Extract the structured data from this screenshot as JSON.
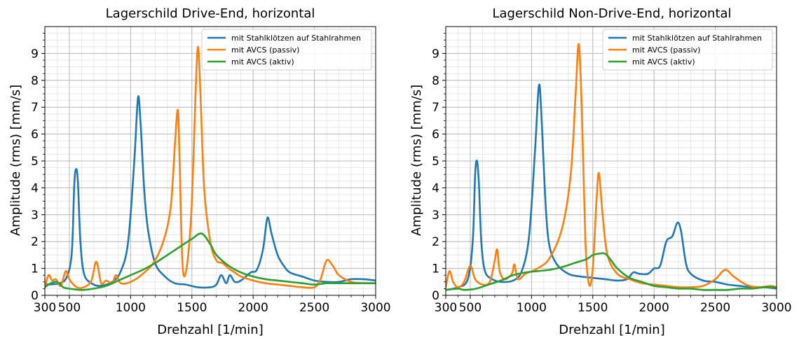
{
  "figure": {
    "panels": [
      {
        "title": "Lagerschild Drive-End, horizontal"
      },
      {
        "title": "Lagerschild Non-Drive-End, horizontal"
      }
    ]
  },
  "colors": {
    "blue": "#1f77b4",
    "orange": "#ff7f0e",
    "green": "#2ca02c"
  },
  "chart_data": [
    {
      "type": "line",
      "title": "Lagerschild Drive-End, horizontal",
      "xlabel": "Drehzahl [1/min]",
      "ylabel": "Amplitude (rms) [mm/s]",
      "xlim": [
        300,
        3000
      ],
      "ylim": [
        0,
        10
      ],
      "xticks": [
        300,
        500,
        1000,
        1500,
        2000,
        2500,
        3000
      ],
      "xtick_labels": [
        "300",
        "500",
        "1000",
        "1500",
        "2000",
        "2500",
        "3000"
      ],
      "yticks": [
        0,
        1,
        2,
        3,
        4,
        5,
        6,
        7,
        8,
        9
      ],
      "ytick_labels": [
        "0",
        "1",
        "2",
        "3",
        "4",
        "5",
        "6",
        "7",
        "8",
        "9"
      ],
      "grid": true,
      "minor_grid": true,
      "legend_position": "top-right",
      "series": [
        {
          "name": "mit Stahlklötzen auf Stahlrahmen",
          "color": "#1f77b4",
          "points": [
            [
              300,
              0.4
            ],
            [
              420,
              0.45
            ],
            [
              480,
              0.7
            ],
            [
              520,
              1.6
            ],
            [
              540,
              4.1
            ],
            [
              555,
              4.7
            ],
            [
              570,
              4.2
            ],
            [
              590,
              2.0
            ],
            [
              620,
              0.8
            ],
            [
              680,
              0.45
            ],
            [
              750,
              0.35
            ],
            [
              850,
              0.5
            ],
            [
              920,
              0.9
            ],
            [
              980,
              2.0
            ],
            [
              1030,
              5.0
            ],
            [
              1060,
              7.35
            ],
            [
              1080,
              6.5
            ],
            [
              1110,
              4.0
            ],
            [
              1140,
              2.5
            ],
            [
              1200,
              1.2
            ],
            [
              1280,
              0.7
            ],
            [
              1360,
              0.45
            ],
            [
              1450,
              0.4
            ],
            [
              1550,
              0.3
            ],
            [
              1650,
              0.3
            ],
            [
              1700,
              0.4
            ],
            [
              1740,
              0.75
            ],
            [
              1780,
              0.45
            ],
            [
              1810,
              0.75
            ],
            [
              1850,
              0.5
            ],
            [
              1900,
              0.55
            ],
            [
              1980,
              0.85
            ],
            [
              2030,
              0.95
            ],
            [
              2080,
              1.7
            ],
            [
              2110,
              2.75
            ],
            [
              2125,
              2.85
            ],
            [
              2150,
              2.3
            ],
            [
              2200,
              1.5
            ],
            [
              2250,
              1.1
            ],
            [
              2300,
              0.85
            ],
            [
              2400,
              0.7
            ],
            [
              2500,
              0.55
            ],
            [
              2600,
              0.5
            ],
            [
              2700,
              0.5
            ],
            [
              2800,
              0.6
            ],
            [
              2900,
              0.6
            ],
            [
              3000,
              0.55
            ]
          ]
        },
        {
          "name": "mit AVCS (passiv)",
          "color": "#ff7f0e",
          "points": [
            [
              300,
              0.3
            ],
            [
              330,
              0.75
            ],
            [
              360,
              0.55
            ],
            [
              390,
              0.6
            ],
            [
              430,
              0.35
            ],
            [
              470,
              0.9
            ],
            [
              500,
              0.6
            ],
            [
              560,
              0.3
            ],
            [
              620,
              0.3
            ],
            [
              680,
              0.55
            ],
            [
              720,
              1.25
            ],
            [
              760,
              0.45
            ],
            [
              800,
              0.55
            ],
            [
              850,
              0.45
            ],
            [
              880,
              0.75
            ],
            [
              920,
              0.45
            ],
            [
              1000,
              0.5
            ],
            [
              1100,
              0.8
            ],
            [
              1200,
              1.3
            ],
            [
              1280,
              2.2
            ],
            [
              1330,
              3.4
            ],
            [
              1360,
              5.5
            ],
            [
              1385,
              6.9
            ],
            [
              1400,
              5.0
            ],
            [
              1420,
              1.5
            ],
            [
              1440,
              0.7
            ],
            [
              1470,
              1.5
            ],
            [
              1500,
              3.5
            ],
            [
              1530,
              7.5
            ],
            [
              1550,
              9.25
            ],
            [
              1570,
              7.5
            ],
            [
              1600,
              4.0
            ],
            [
              1650,
              2.0
            ],
            [
              1700,
              1.3
            ],
            [
              1750,
              1.2
            ],
            [
              1800,
              1.0
            ],
            [
              1850,
              0.85
            ],
            [
              1900,
              0.7
            ],
            [
              2000,
              0.55
            ],
            [
              2100,
              0.45
            ],
            [
              2200,
              0.4
            ],
            [
              2300,
              0.35
            ],
            [
              2400,
              0.3
            ],
            [
              2500,
              0.3
            ],
            [
              2550,
              0.6
            ],
            [
              2600,
              1.3
            ],
            [
              2650,
              1.1
            ],
            [
              2700,
              0.75
            ],
            [
              2800,
              0.5
            ],
            [
              2900,
              0.45
            ],
            [
              3000,
              0.45
            ]
          ]
        },
        {
          "name": "mit AVCS (aktiv)",
          "color": "#2ca02c",
          "points": [
            [
              300,
              0.3
            ],
            [
              350,
              0.45
            ],
            [
              400,
              0.5
            ],
            [
              450,
              0.3
            ],
            [
              500,
              0.25
            ],
            [
              600,
              0.2
            ],
            [
              700,
              0.25
            ],
            [
              800,
              0.35
            ],
            [
              900,
              0.55
            ],
            [
              1000,
              0.75
            ],
            [
              1100,
              0.95
            ],
            [
              1200,
              1.2
            ],
            [
              1300,
              1.5
            ],
            [
              1400,
              1.8
            ],
            [
              1500,
              2.1
            ],
            [
              1580,
              2.3
            ],
            [
              1650,
              1.9
            ],
            [
              1700,
              1.5
            ],
            [
              1800,
              1.1
            ],
            [
              1900,
              0.85
            ],
            [
              2000,
              0.7
            ],
            [
              2100,
              0.6
            ],
            [
              2200,
              0.55
            ],
            [
              2300,
              0.5
            ],
            [
              2400,
              0.45
            ],
            [
              2500,
              0.4
            ],
            [
              2600,
              0.45
            ],
            [
              2700,
              0.45
            ],
            [
              2800,
              0.45
            ],
            [
              2900,
              0.45
            ],
            [
              3000,
              0.45
            ]
          ]
        }
      ]
    },
    {
      "type": "line",
      "title": "Lagerschild Non-Drive-End, horizontal",
      "xlabel": "Drehzahl [1/min]",
      "ylabel": "Amplitude (rms) [mm/s]",
      "xlim": [
        300,
        3000
      ],
      "ylim": [
        0,
        10
      ],
      "xticks": [
        300,
        500,
        1000,
        1500,
        2000,
        2500,
        3000
      ],
      "xtick_labels": [
        "300",
        "500",
        "1000",
        "1500",
        "2000",
        "2500",
        "3000"
      ],
      "yticks": [
        0,
        1,
        2,
        3,
        4,
        5,
        6,
        7,
        8,
        9
      ],
      "ytick_labels": [
        "0",
        "1",
        "2",
        "3",
        "4",
        "5",
        "6",
        "7",
        "8",
        "9"
      ],
      "grid": true,
      "minor_grid": true,
      "legend_position": "top-right",
      "series": [
        {
          "name": "mit Stahlklötzen auf Stahlrahmen",
          "color": "#1f77b4",
          "points": [
            [
              300,
              0.2
            ],
            [
              400,
              0.3
            ],
            [
              480,
              0.6
            ],
            [
              520,
              2.0
            ],
            [
              540,
              4.5
            ],
            [
              555,
              5.0
            ],
            [
              570,
              4.2
            ],
            [
              590,
              2.0
            ],
            [
              620,
              0.9
            ],
            [
              680,
              0.6
            ],
            [
              750,
              0.5
            ],
            [
              850,
              0.55
            ],
            [
              920,
              0.9
            ],
            [
              980,
              2.2
            ],
            [
              1030,
              5.5
            ],
            [
              1060,
              7.8
            ],
            [
              1080,
              6.8
            ],
            [
              1110,
              3.8
            ],
            [
              1140,
              2.0
            ],
            [
              1200,
              1.2
            ],
            [
              1300,
              0.8
            ],
            [
              1400,
              0.7
            ],
            [
              1500,
              0.65
            ],
            [
              1600,
              0.6
            ],
            [
              1700,
              0.55
            ],
            [
              1780,
              0.6
            ],
            [
              1830,
              0.85
            ],
            [
              1880,
              0.8
            ],
            [
              1950,
              0.8
            ],
            [
              2000,
              1.0
            ],
            [
              2050,
              1.1
            ],
            [
              2100,
              2.0
            ],
            [
              2150,
              2.2
            ],
            [
              2190,
              2.7
            ],
            [
              2220,
              2.4
            ],
            [
              2260,
              1.2
            ],
            [
              2300,
              0.8
            ],
            [
              2400,
              0.55
            ],
            [
              2500,
              0.5
            ],
            [
              2600,
              0.4
            ],
            [
              2700,
              0.35
            ],
            [
              2800,
              0.3
            ],
            [
              2900,
              0.3
            ],
            [
              3000,
              0.25
            ]
          ]
        },
        {
          "name": "mit AVCS (passiv)",
          "color": "#ff7f0e",
          "points": [
            [
              300,
              0.3
            ],
            [
              330,
              0.9
            ],
            [
              360,
              0.5
            ],
            [
              400,
              0.3
            ],
            [
              450,
              0.5
            ],
            [
              500,
              1.1
            ],
            [
              540,
              0.6
            ],
            [
              600,
              0.4
            ],
            [
              660,
              0.5
            ],
            [
              700,
              1.3
            ],
            [
              720,
              1.7
            ],
            [
              740,
              0.9
            ],
            [
              780,
              0.6
            ],
            [
              840,
              0.8
            ],
            [
              860,
              1.15
            ],
            [
              890,
              0.6
            ],
            [
              950,
              0.8
            ],
            [
              1050,
              1.0
            ],
            [
              1150,
              1.4
            ],
            [
              1250,
              2.5
            ],
            [
              1320,
              4.5
            ],
            [
              1360,
              7.5
            ],
            [
              1385,
              9.35
            ],
            [
              1410,
              7.0
            ],
            [
              1440,
              2.0
            ],
            [
              1470,
              0.4
            ],
            [
              1500,
              1.0
            ],
            [
              1530,
              3.5
            ],
            [
              1550,
              4.55
            ],
            [
              1580,
              3.0
            ],
            [
              1620,
              1.5
            ],
            [
              1700,
              0.8
            ],
            [
              1800,
              0.6
            ],
            [
              1900,
              0.45
            ],
            [
              2000,
              0.4
            ],
            [
              2100,
              0.35
            ],
            [
              2200,
              0.3
            ],
            [
              2300,
              0.3
            ],
            [
              2400,
              0.35
            ],
            [
              2500,
              0.6
            ],
            [
              2580,
              0.95
            ],
            [
              2650,
              0.7
            ],
            [
              2750,
              0.4
            ],
            [
              2850,
              0.3
            ],
            [
              2950,
              0.35
            ],
            [
              3000,
              0.3
            ]
          ]
        },
        {
          "name": "mit AVCS (aktiv)",
          "color": "#2ca02c",
          "points": [
            [
              300,
              0.2
            ],
            [
              400,
              0.25
            ],
            [
              450,
              0.2
            ],
            [
              550,
              0.25
            ],
            [
              650,
              0.4
            ],
            [
              750,
              0.55
            ],
            [
              850,
              0.75
            ],
            [
              950,
              0.85
            ],
            [
              1050,
              0.9
            ],
            [
              1150,
              0.95
            ],
            [
              1250,
              1.05
            ],
            [
              1350,
              1.2
            ],
            [
              1450,
              1.35
            ],
            [
              1500,
              1.5
            ],
            [
              1550,
              1.55
            ],
            [
              1600,
              1.55
            ],
            [
              1650,
              1.3
            ],
            [
              1700,
              1.0
            ],
            [
              1800,
              0.65
            ],
            [
              1900,
              0.5
            ],
            [
              2000,
              0.35
            ],
            [
              2100,
              0.3
            ],
            [
              2200,
              0.25
            ],
            [
              2300,
              0.25
            ],
            [
              2400,
              0.2
            ],
            [
              2500,
              0.2
            ],
            [
              2600,
              0.2
            ],
            [
              2700,
              0.25
            ],
            [
              2800,
              0.25
            ],
            [
              2900,
              0.3
            ],
            [
              3000,
              0.3
            ]
          ]
        }
      ]
    }
  ]
}
